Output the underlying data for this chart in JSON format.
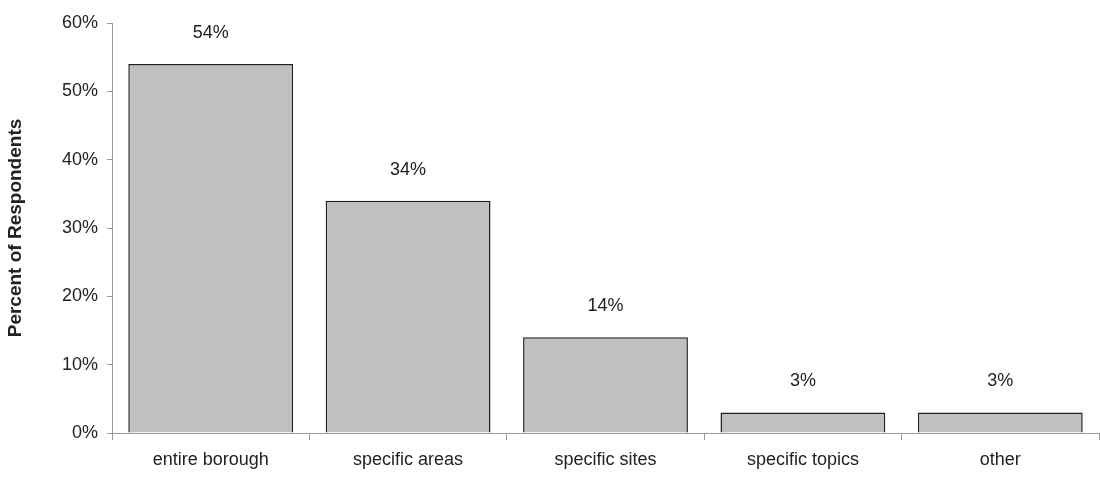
{
  "chart_data": {
    "type": "bar",
    "ylabel": "Percent of Respondents",
    "categories": [
      "entire borough",
      "specific areas",
      "specific sites",
      "specific topics",
      "other"
    ],
    "values": [
      54,
      34,
      14,
      3,
      3
    ],
    "color": "#c0c0c0",
    "value_labels": [
      "54%",
      "34%",
      "14%",
      "3%",
      "3%"
    ],
    "ylim": [
      0,
      60
    ],
    "yticks": [
      {
        "value": 0,
        "label": "0%"
      },
      {
        "value": 10,
        "label": "10%"
      },
      {
        "value": 20,
        "label": "20%"
      },
      {
        "value": 30,
        "label": "30%"
      },
      {
        "value": 40,
        "label": "40%"
      },
      {
        "value": 50,
        "label": "50%"
      },
      {
        "value": 60,
        "label": "60%"
      }
    ]
  }
}
